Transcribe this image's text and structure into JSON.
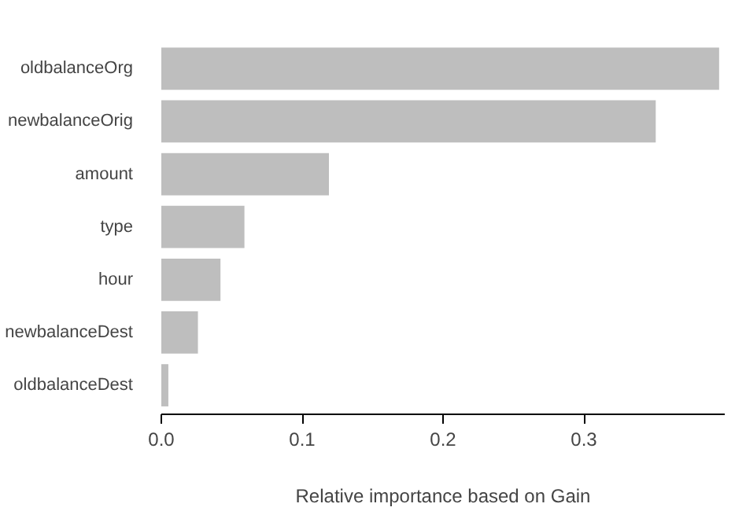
{
  "chart_data": {
    "type": "bar",
    "orientation": "horizontal",
    "xlabel": "Relative importance based on Gain",
    "categories": [
      "oldbalanceOrg",
      "newbalanceOrig",
      "amount",
      "type",
      "hour",
      "newbalanceDest",
      "oldbalanceDest"
    ],
    "values": [
      0.396,
      0.351,
      0.119,
      0.059,
      0.042,
      0.026,
      0.005
    ],
    "color": "#bebebe",
    "xlim": [
      0,
      0.4
    ],
    "xticks": [
      {
        "value": 0,
        "label": "0.0"
      },
      0.1,
      0.2,
      0.3
    ],
    "grid": false
  }
}
